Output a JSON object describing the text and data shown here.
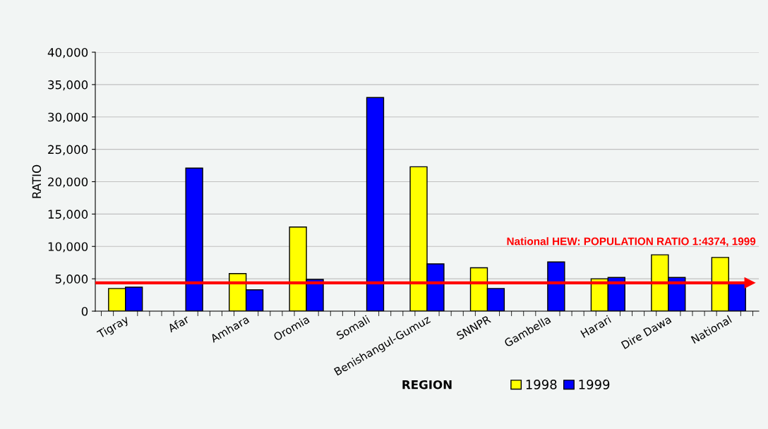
{
  "chart_data": {
    "type": "bar",
    "xlabel": "REGION",
    "ylabel": "RATIO",
    "categories": [
      "Tigray",
      "Afar",
      "Amhara",
      "Oromia",
      "Somali",
      "Benishangul-Gumuz",
      "SNNPR",
      "Gambella",
      "Harari",
      "Dire Dawa",
      "National"
    ],
    "series": [
      {
        "name": "1998",
        "color": "#ffff00",
        "values": [
          3500,
          null,
          5800,
          13000,
          null,
          22300,
          6700,
          null,
          5000,
          8700,
          8300
        ]
      },
      {
        "name": "1999",
        "color": "#0000ff",
        "values": [
          3700,
          22100,
          3300,
          4900,
          33000,
          7300,
          3500,
          7600,
          5200,
          5200,
          4400
        ]
      }
    ],
    "ylim": [
      0,
      40000
    ],
    "yticks": [
      {
        "value": 0,
        "label": "0"
      },
      {
        "value": 5000,
        "label": "5,000"
      },
      {
        "value": 10000,
        "label": "10,000"
      },
      {
        "value": 15000,
        "label": "15,000"
      },
      {
        "value": 20000,
        "label": "20,000"
      },
      {
        "value": 25000,
        "label": "25,000"
      },
      {
        "value": 30000,
        "label": "30,000"
      },
      {
        "value": 35000,
        "label": "35,000"
      },
      {
        "value": 40000,
        "label": "40,000"
      }
    ],
    "ref_lines": [
      {
        "axis": "y",
        "value": 4374,
        "label": "National HEW: POPULATION RATIO 1:4374, 1999",
        "color": "#ff0000"
      }
    ],
    "grid": "y",
    "legend": "bottom"
  }
}
